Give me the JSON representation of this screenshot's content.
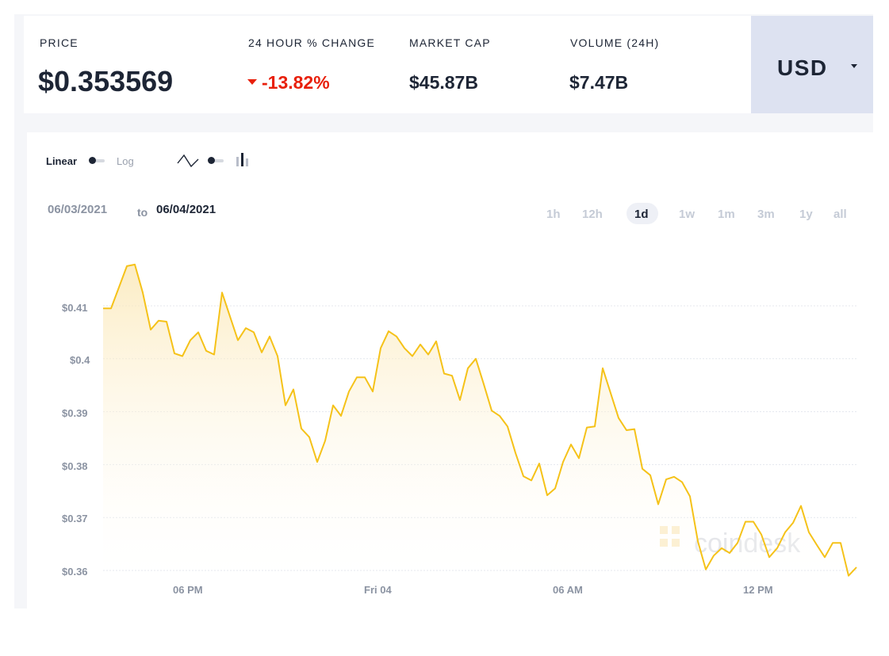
{
  "stats": {
    "price_label": "PRICE",
    "price_value": "$0.353569",
    "change_label": "24 HOUR % CHANGE",
    "change_value": "-13.82%",
    "cap_label": "MARKET CAP",
    "cap_value": "$45.87B",
    "volume_label": "VOLUME (24H)",
    "volume_value": "$7.47B"
  },
  "currency": {
    "selected": "USD"
  },
  "toolbar": {
    "linear_label": "Linear",
    "log_label": "Log"
  },
  "date_range": {
    "from": "06/03/2021",
    "to_word": "to",
    "to": "06/04/2021"
  },
  "ranges": [
    "1h",
    "12h",
    "1d",
    "1w",
    "1m",
    "3m",
    "1y",
    "all"
  ],
  "active_range": "1d",
  "watermark": "coindesk",
  "colors": {
    "line": "#f5c219",
    "negative": "#e8200c",
    "currency_bg": "#dde2f1"
  },
  "chart_data": {
    "type": "area",
    "yticks": [
      "$0.41",
      "$0.4",
      "$0.39",
      "$0.38",
      "$0.37",
      "$0.36"
    ],
    "ytick_values": [
      0.41,
      0.4,
      0.39,
      0.38,
      0.37,
      0.36
    ],
    "xticks": [
      "06 PM",
      "Fri 04",
      "06 AM",
      "12 PM"
    ],
    "ylim": [
      0.36,
      0.41
    ],
    "grid": true,
    "values": [
      0.4095,
      0.4095,
      0.4135,
      0.4175,
      0.4178,
      0.4125,
      0.4055,
      0.4072,
      0.407,
      0.401,
      0.4005,
      0.4035,
      0.405,
      0.4015,
      0.4008,
      0.4125,
      0.408,
      0.4035,
      0.4058,
      0.405,
      0.4012,
      0.4042,
      0.4005,
      0.3912,
      0.3942,
      0.3868,
      0.3852,
      0.3805,
      0.3845,
      0.3912,
      0.3892,
      0.3938,
      0.3965,
      0.3965,
      0.3938,
      0.402,
      0.4052,
      0.4042,
      0.402,
      0.4005,
      0.4027,
      0.4008,
      0.4033,
      0.3972,
      0.3968,
      0.3922,
      0.3982,
      0.4,
      0.3952,
      0.3902,
      0.3892,
      0.3872,
      0.3822,
      0.3778,
      0.377,
      0.3802,
      0.3742,
      0.3755,
      0.3805,
      0.3838,
      0.3812,
      0.387,
      0.3872,
      0.3982,
      0.3935,
      0.3888,
      0.3865,
      0.3867,
      0.3792,
      0.378,
      0.3725,
      0.3772,
      0.3777,
      0.3767,
      0.374,
      0.3655,
      0.3602,
      0.3628,
      0.3642,
      0.3633,
      0.3652,
      0.3692,
      0.3692,
      0.3668,
      0.3625,
      0.3642,
      0.3672,
      0.369,
      0.3722,
      0.3672,
      0.3648,
      0.3625,
      0.3652,
      0.3652,
      0.359,
      0.3606
    ]
  }
}
